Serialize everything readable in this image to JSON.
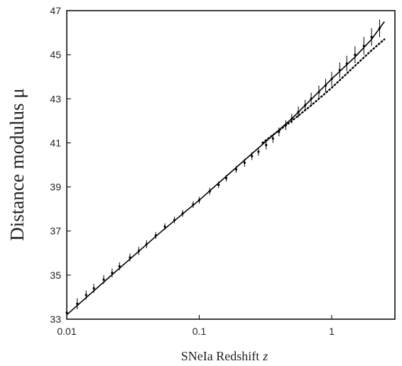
{
  "chart_data": {
    "type": "scatter",
    "title": "",
    "xlabel": "SNeIa Redshift",
    "xlabel_var": "z",
    "ylabel": "Distance modulus  μ",
    "xscale": "log",
    "xlim": [
      0.01,
      3
    ],
    "ylim": [
      33,
      47
    ],
    "grid": false,
    "legend": "none",
    "x_tick_labels": [
      "0.01",
      "0.1",
      "1"
    ],
    "y_tick_labels": [
      "33",
      "35",
      "37",
      "39",
      "41",
      "43",
      "45",
      "47"
    ],
    "series": [
      {
        "style": "points with vertical error bars",
        "x": [
          0.01,
          0.012,
          0.014,
          0.016,
          0.019,
          0.022,
          0.025,
          0.03,
          0.035,
          0.04,
          0.047,
          0.055,
          0.065,
          0.075,
          0.09,
          0.1,
          0.12,
          0.14,
          0.16,
          0.19,
          0.22,
          0.25,
          0.28,
          0.32,
          0.36,
          0.4,
          0.45,
          0.5,
          0.56,
          0.63,
          0.7,
          0.8,
          0.9,
          1.0,
          1.15,
          1.3,
          1.5,
          1.75,
          2.0,
          2.3
        ],
        "y": [
          33.3,
          33.7,
          34.1,
          34.4,
          34.8,
          35.1,
          35.4,
          35.8,
          36.1,
          36.4,
          36.8,
          37.2,
          37.5,
          37.8,
          38.2,
          38.4,
          38.8,
          39.1,
          39.4,
          39.8,
          40.1,
          40.4,
          40.6,
          40.9,
          41.2,
          41.5,
          41.8,
          42.1,
          42.4,
          42.7,
          43.0,
          43.3,
          43.6,
          43.9,
          44.3,
          44.6,
          45.0,
          45.4,
          45.8,
          46.2
        ],
        "err": [
          0.25,
          0.25,
          0.2,
          0.2,
          0.2,
          0.2,
          0.18,
          0.18,
          0.18,
          0.18,
          0.15,
          0.15,
          0.15,
          0.15,
          0.15,
          0.15,
          0.15,
          0.15,
          0.15,
          0.15,
          0.18,
          0.18,
          0.18,
          0.2,
          0.2,
          0.2,
          0.22,
          0.22,
          0.25,
          0.25,
          0.28,
          0.3,
          0.3,
          0.32,
          0.35,
          0.35,
          0.38,
          0.4,
          0.4,
          0.4
        ]
      },
      {
        "style": "solid line",
        "x": [
          0.01,
          0.02,
          0.05,
          0.1,
          0.2,
          0.5,
          1.0,
          1.5,
          2.0,
          2.5
        ],
        "y": [
          33.2,
          34.8,
          36.9,
          38.4,
          40.0,
          42.1,
          43.9,
          44.9,
          45.7,
          46.5
        ]
      },
      {
        "style": "dotted line",
        "x": [
          0.3,
          0.5,
          0.7,
          1.0,
          1.5,
          2.0,
          2.5
        ],
        "y": [
          41.0,
          42.0,
          42.7,
          43.5,
          44.5,
          45.2,
          45.7
        ]
      }
    ]
  }
}
